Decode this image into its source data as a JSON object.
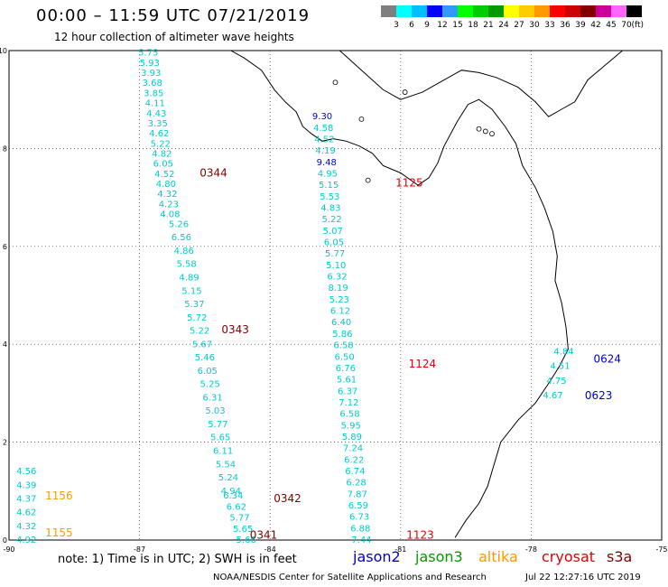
{
  "header": {
    "title": "00:00 – 11:59 UTC 07/21/2019",
    "subtitle": "12 hour collection of altimeter wave heights"
  },
  "colorbar": {
    "unit": "(ft)",
    "levels": [
      "3",
      "6",
      "9",
      "12",
      "15",
      "18",
      "21",
      "24",
      "27",
      "30",
      "33",
      "36",
      "39",
      "42",
      "45",
      "70"
    ],
    "colors": [
      "#7f7f7f",
      "#00ffff",
      "#00bfff",
      "#0000ff",
      "#3399ff",
      "#00ff00",
      "#00cc00",
      "#009900",
      "#ffff00",
      "#ffcc00",
      "#ff9900",
      "#ff0000",
      "#cc0000",
      "#800000",
      "#cc0099",
      "#ff66ff",
      "#000000"
    ]
  },
  "map": {
    "lon_range": [
      -90,
      -75
    ],
    "lat_range": [
      0,
      10
    ],
    "lon_ticks": [
      "-90",
      "-87",
      "-84",
      "-81",
      "-78",
      "-75"
    ],
    "lat_ticks": [
      "0",
      "2",
      "4",
      "6",
      "8",
      "10"
    ],
    "grid": true
  },
  "tracks": [
    {
      "pass": "0344",
      "pass_color": "#800000",
      "text_color": "#00cccc",
      "values": [
        "5.75",
        "5.93",
        "3.93",
        "3.68",
        "3.85",
        "4.11",
        "4.43",
        "3.35",
        "4.62",
        "5.22",
        "4.82",
        "6.05",
        "4.52",
        "4.80",
        "4.32",
        "4.23",
        "4.08"
      ]
    },
    {
      "pass": "0343",
      "pass_color": "#800000",
      "text_color": "#00cccc",
      "values": [
        "5.26",
        "6.56",
        "4.86",
        "5.58",
        "4.89",
        "5.15",
        "5.37",
        "5.72",
        "5.22",
        "5.67",
        "5.46",
        "6.05",
        "5.25",
        "6.31",
        "5.03",
        "5.77",
        "5.65",
        "6.11",
        "5.54",
        "5.24",
        "4.94"
      ]
    },
    {
      "pass": "0342",
      "pass_color": "#800000",
      "text_color": "#00cccc",
      "values": [
        "6.34",
        "6.62",
        "5.77",
        "5.65",
        "5.66"
      ]
    },
    {
      "pass": "0341",
      "pass_color": "#800000",
      "text_color": "#00cccc",
      "values": []
    },
    {
      "pass": "1125",
      "pass_color": "#e00000",
      "text_color": "#00cccc",
      "values": [
        "9.30",
        "4.58",
        "4.52",
        "4.19",
        "9.48",
        "4.95",
        "5.15",
        "5.53",
        "4.83",
        "5.22",
        "5.07",
        "6.05",
        "5.77",
        "5.10",
        "6.32",
        "8.19",
        "5.23",
        "6.12",
        "6.40",
        "5.86",
        "6.58",
        "6.50",
        "6.76",
        "5.61",
        "6.37",
        "7.12",
        "6.58",
        "5.95",
        "5.89",
        "7.24",
        "6.22",
        "6.74",
        "6.28",
        "7.87",
        "6.59",
        "6.73",
        "6.88",
        "7.44"
      ]
    },
    {
      "pass": "1124",
      "pass_color": "#e00000",
      "text_color": "#00cccc",
      "values": []
    },
    {
      "pass": "1123",
      "pass_color": "#e00000",
      "text_color": "#00cccc",
      "values": []
    },
    {
      "pass": "1156",
      "pass_color": "#ff9900",
      "text_color": "#00cccc",
      "values": [
        "4.56",
        "4.39",
        "4.37",
        "4.62",
        "4.32",
        "4.92"
      ]
    },
    {
      "pass": "1155",
      "pass_color": "#ff9900",
      "text_color": "#00cccc",
      "values": []
    },
    {
      "pass": "0624",
      "pass_color": "#0000cc",
      "text_color": "#00cccc",
      "values": [
        "4.84",
        "4.51",
        "4.75",
        "4.67"
      ]
    },
    {
      "pass": "0623",
      "pass_color": "#0000cc",
      "text_color": "#00cccc",
      "values": []
    }
  ],
  "footer": {
    "note": "note:  1) Time is in UTC;  2) SWH is in feet",
    "satellites": [
      {
        "name": "jason2",
        "color": "#0000cc"
      },
      {
        "name": "jason3",
        "color": "#009900"
      },
      {
        "name": "altika",
        "color": "#ff9900"
      },
      {
        "name": "cryosat",
        "color": "#e00000"
      },
      {
        "name": "s3a",
        "color": "#800000"
      }
    ],
    "credit": "NOAA/NESDIS Center for Satellite Applications and Research",
    "timestamp": "Jul 22 12:27:16 UTC 2019"
  }
}
